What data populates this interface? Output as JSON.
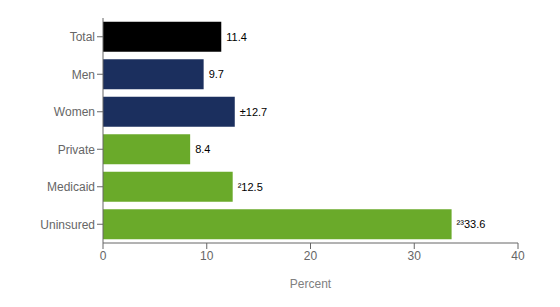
{
  "chart_data": {
    "type": "bar",
    "orientation": "horizontal",
    "categories": [
      "Total",
      "Men",
      "Women",
      "Private",
      "Medicaid",
      "Uninsured"
    ],
    "values": [
      11.4,
      9.7,
      12.7,
      8.4,
      12.5,
      33.6
    ],
    "value_labels": [
      "11.4",
      "9.7",
      "±12.7",
      "8.4",
      "²12.5",
      "²³33.6"
    ],
    "data_labels": true,
    "colors": [
      "#000000",
      "#1b2f5e",
      "#1b2f5e",
      "#6aaa2a",
      "#6aaa2a",
      "#6aaa2a"
    ],
    "xlabel": "Percent",
    "xlim": [
      0,
      40
    ],
    "xticks": [
      0,
      10,
      20,
      30,
      40
    ],
    "grid": false
  }
}
